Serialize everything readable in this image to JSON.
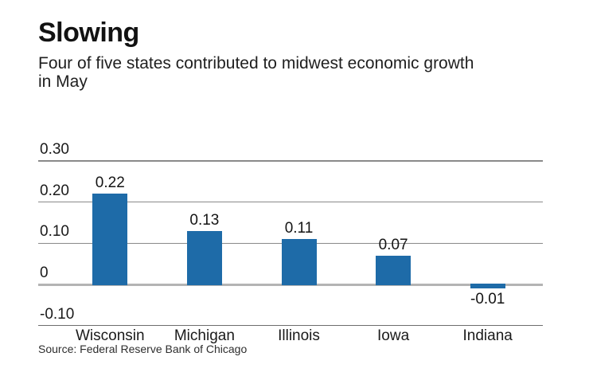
{
  "chart_data": {
    "type": "bar",
    "title": "Slowing",
    "subtitle_lines": [
      "Four of five states contributed to midwest economic growth",
      "in May"
    ],
    "categories": [
      "Wisconsin",
      "Michigan",
      "Illinois",
      "Iowa",
      "Indiana"
    ],
    "values": [
      0.22,
      0.13,
      0.11,
      0.07,
      -0.01
    ],
    "value_labels": [
      "0.22",
      "0.13",
      "0.11",
      "0.07",
      "-0.01"
    ],
    "yticks": [
      0.3,
      0.2,
      0.1,
      0,
      -0.1
    ],
    "ytick_labels": [
      "0.30",
      "0.20",
      "0.10",
      "0",
      "-0.10"
    ],
    "ylim": [
      -0.1,
      0.3
    ],
    "grid": true,
    "legend": false,
    "bar_color": "#1e6ba8",
    "source": "Source: Federal Reserve Bank of Chicago"
  }
}
